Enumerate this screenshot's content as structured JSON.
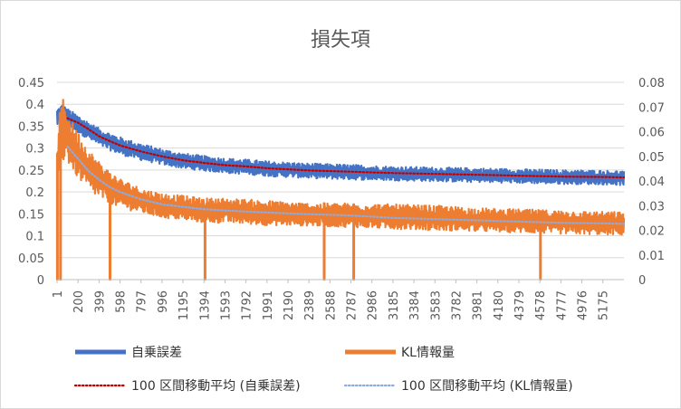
{
  "chart_data": {
    "type": "line",
    "title": "損失項",
    "xlabel": "",
    "ylabel": "",
    "y_left": {
      "ticks": [
        "0",
        "0.05",
        "0.1",
        "0.15",
        "0.2",
        "0.25",
        "0.3",
        "0.35",
        "0.4",
        "0.45"
      ],
      "lim": [
        0,
        0.45
      ]
    },
    "y_right": {
      "ticks": [
        "0",
        "0.01",
        "0.02",
        "0.03",
        "0.04",
        "0.05",
        "0.06",
        "0.07",
        "0.08"
      ],
      "lim": [
        0,
        0.08
      ]
    },
    "x_ticks": [
      "1",
      "200",
      "399",
      "598",
      "797",
      "996",
      "1195",
      "1394",
      "1593",
      "1792",
      "1991",
      "2190",
      "2389",
      "2588",
      "2787",
      "2986",
      "3185",
      "3384",
      "3583",
      "3782",
      "3981",
      "4180",
      "4379",
      "4578",
      "4777",
      "4976",
      "5175"
    ],
    "x_range": [
      1,
      5375
    ],
    "grid": true,
    "legend_position": "bottom",
    "series": [
      {
        "name": "自乗誤差",
        "axis": "left",
        "style": "band",
        "color": "#4472c4",
        "x": [
          1,
          50,
          100,
          200,
          300,
          400,
          500,
          600,
          800,
          1000,
          1200,
          1400,
          1600,
          1800,
          2000,
          2400,
          2800,
          3200,
          3600,
          4000,
          4400,
          4800,
          5200,
          5375
        ],
        "mean": [
          0.37,
          0.38,
          0.37,
          0.355,
          0.34,
          0.325,
          0.315,
          0.305,
          0.29,
          0.28,
          0.27,
          0.265,
          0.26,
          0.257,
          0.253,
          0.248,
          0.245,
          0.242,
          0.24,
          0.238,
          0.236,
          0.234,
          0.233,
          0.232
        ],
        "upper": [
          0.39,
          0.4,
          0.39,
          0.375,
          0.36,
          0.345,
          0.335,
          0.325,
          0.31,
          0.298,
          0.288,
          0.282,
          0.277,
          0.274,
          0.27,
          0.265,
          0.262,
          0.258,
          0.256,
          0.254,
          0.252,
          0.25,
          0.249,
          0.248
        ],
        "lower": [
          0.35,
          0.36,
          0.35,
          0.335,
          0.32,
          0.305,
          0.295,
          0.285,
          0.272,
          0.262,
          0.253,
          0.248,
          0.243,
          0.24,
          0.236,
          0.231,
          0.228,
          0.226,
          0.224,
          0.222,
          0.22,
          0.218,
          0.217,
          0.215
        ]
      },
      {
        "name": "KL情報量",
        "axis": "right",
        "style": "band",
        "color": "#ed7d31",
        "x": [
          1,
          20,
          50,
          80,
          120,
          200,
          300,
          400,
          500,
          600,
          800,
          1000,
          1200,
          1400,
          1600,
          2000,
          2400,
          2800,
          3200,
          3600,
          4000,
          4400,
          4800,
          5200,
          5375
        ],
        "mean": [
          0.044,
          0.05,
          0.058,
          0.062,
          0.056,
          0.05,
          0.044,
          0.04,
          0.037,
          0.035,
          0.032,
          0.03,
          0.029,
          0.028,
          0.028,
          0.027,
          0.0265,
          0.026,
          0.025,
          0.0245,
          0.024,
          0.0235,
          0.023,
          0.0228,
          0.0226
        ],
        "upper": [
          0.052,
          0.066,
          0.074,
          0.072,
          0.066,
          0.06,
          0.053,
          0.048,
          0.044,
          0.041,
          0.037,
          0.035,
          0.034,
          0.033,
          0.033,
          0.032,
          0.031,
          0.031,
          0.0305,
          0.03,
          0.029,
          0.0285,
          0.028,
          0.0275,
          0.0275
        ],
        "lower": [
          0.036,
          0.042,
          0.046,
          0.05,
          0.046,
          0.041,
          0.036,
          0.033,
          0.031,
          0.029,
          0.027,
          0.025,
          0.024,
          0.023,
          0.023,
          0.022,
          0.0218,
          0.0212,
          0.0205,
          0.02,
          0.0195,
          0.019,
          0.0185,
          0.0182,
          0.018
        ],
        "spikes_to_zero_at": [
          1,
          30,
          500,
          1400,
          2530,
          2810,
          4580
        ]
      },
      {
        "name": "100 区間移動平均 (自乗誤差)",
        "axis": "left",
        "style": "dotted",
        "color": "#c00000",
        "x": [
          100,
          200,
          300,
          400,
          500,
          600,
          800,
          1000,
          1200,
          1400,
          1600,
          1800,
          2000,
          2400,
          2800,
          3200,
          3600,
          4000,
          4400,
          4800,
          5200,
          5375
        ],
        "values": [
          0.368,
          0.358,
          0.343,
          0.327,
          0.316,
          0.306,
          0.292,
          0.281,
          0.272,
          0.266,
          0.261,
          0.258,
          0.254,
          0.249,
          0.246,
          0.243,
          0.241,
          0.239,
          0.237,
          0.235,
          0.234,
          0.233
        ]
      },
      {
        "name": "100 区間移動平均 (KL情報量)",
        "axis": "right",
        "style": "dotted",
        "color": "#8faadc",
        "x": [
          100,
          200,
          300,
          400,
          500,
          600,
          800,
          1000,
          1200,
          1400,
          1600,
          2000,
          2400,
          2800,
          3200,
          3600,
          4000,
          4400,
          4800,
          5200,
          5375
        ],
        "values": [
          0.054,
          0.049,
          0.044,
          0.0405,
          0.0375,
          0.0355,
          0.0325,
          0.0305,
          0.0295,
          0.0285,
          0.028,
          0.0272,
          0.0265,
          0.026,
          0.025,
          0.0245,
          0.024,
          0.0235,
          0.023,
          0.0228,
          0.0226
        ]
      }
    ]
  }
}
